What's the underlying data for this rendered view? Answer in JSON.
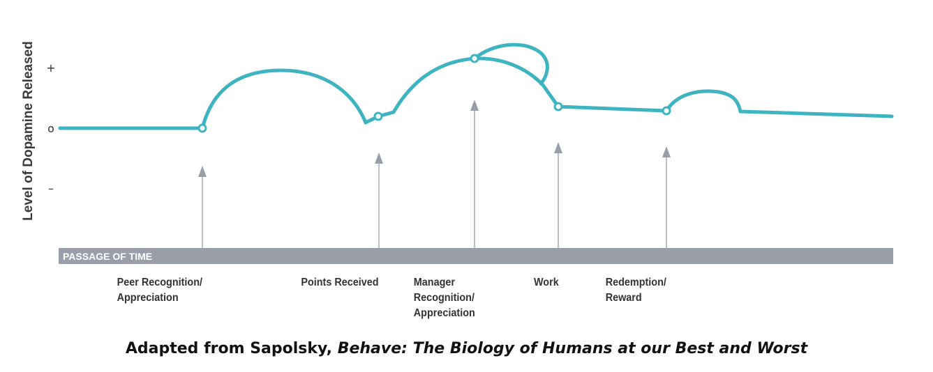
{
  "y_axis": {
    "label": "Level of Dopamine Released",
    "ticks": [
      "+",
      "o",
      "–"
    ]
  },
  "time_band": {
    "label": "PASSAGE OF TIME",
    "color": "#9a9ea8"
  },
  "curve": {
    "color": "#3fb4c1",
    "name": "dopamine-curve"
  },
  "arrow_color": "#9a9ea8",
  "events": [
    {
      "lines": [
        "Peer Recognition/",
        "Appreciation"
      ]
    },
    {
      "lines": [
        "Points Received"
      ]
    },
    {
      "lines": [
        "Manager",
        "Recognition/",
        "Appreciation"
      ]
    },
    {
      "lines": [
        "Work"
      ]
    },
    {
      "lines": [
        "Redemption/",
        "Reward"
      ]
    }
  ],
  "caption": {
    "prefix": "Adapted from Sapolsky, ",
    "title": "Behave: The Biology of Humans at our Best and Worst"
  }
}
